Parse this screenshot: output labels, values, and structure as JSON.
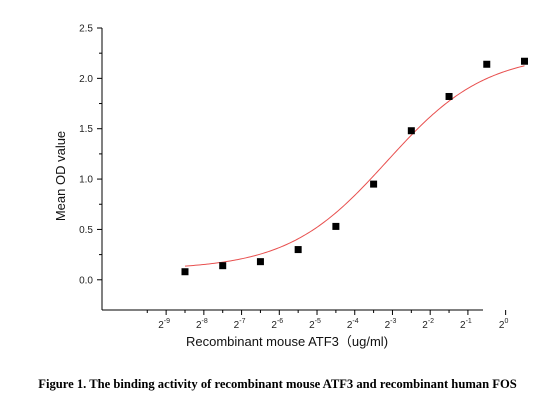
{
  "caption": "Figure 1. The binding activity of recombinant mouse ATF3 and recombinant human FOS",
  "chart_data": {
    "type": "scatter",
    "xlabel": "Recombinant mouse ATF3（ug/ml)",
    "ylabel": "Mean OD value",
    "x_scale": "log2",
    "xlim": [
      -10.7,
      -0.6
    ],
    "ylim": [
      -0.3,
      2.5
    ],
    "x_ticks": [
      -9,
      -8,
      -7,
      -6,
      -5,
      -4,
      -3,
      -2,
      -1,
      0
    ],
    "x_tick_labels": [
      {
        "base": "2",
        "exp": "-9"
      },
      {
        "base": "2",
        "exp": "-8"
      },
      {
        "base": "2",
        "exp": "-7"
      },
      {
        "base": "2",
        "exp": "-6"
      },
      {
        "base": "2",
        "exp": "-5"
      },
      {
        "base": "2",
        "exp": "-4"
      },
      {
        "base": "2",
        "exp": "-3"
      },
      {
        "base": "2",
        "exp": "-2"
      },
      {
        "base": "2",
        "exp": "-1"
      },
      {
        "base": "2",
        "exp": "0"
      }
    ],
    "y_ticks": [
      0.0,
      0.5,
      1.0,
      1.5,
      2.0,
      2.5
    ],
    "y_tick_labels": [
      "0.0",
      "0.5",
      "1.0",
      "1.5",
      "2.0",
      "2.5"
    ],
    "series": [
      {
        "marker": "square",
        "color": "#000000",
        "x": [
          -8.5,
          -7.5,
          -6.5,
          -5.5,
          -4.5,
          -3.5,
          -2.5,
          -1.5,
          -0.5,
          0.5
        ],
        "y": [
          0.08,
          0.14,
          0.18,
          0.3,
          0.53,
          0.95,
          1.48,
          1.82,
          2.14,
          2.17
        ]
      }
    ],
    "fit": {
      "type": "logistic4",
      "color": "#e8504f",
      "bottom": 0.1,
      "top": 2.25,
      "log2_ec50": -3.15,
      "hill": 1.1
    },
    "grid": false,
    "legend": "none"
  }
}
